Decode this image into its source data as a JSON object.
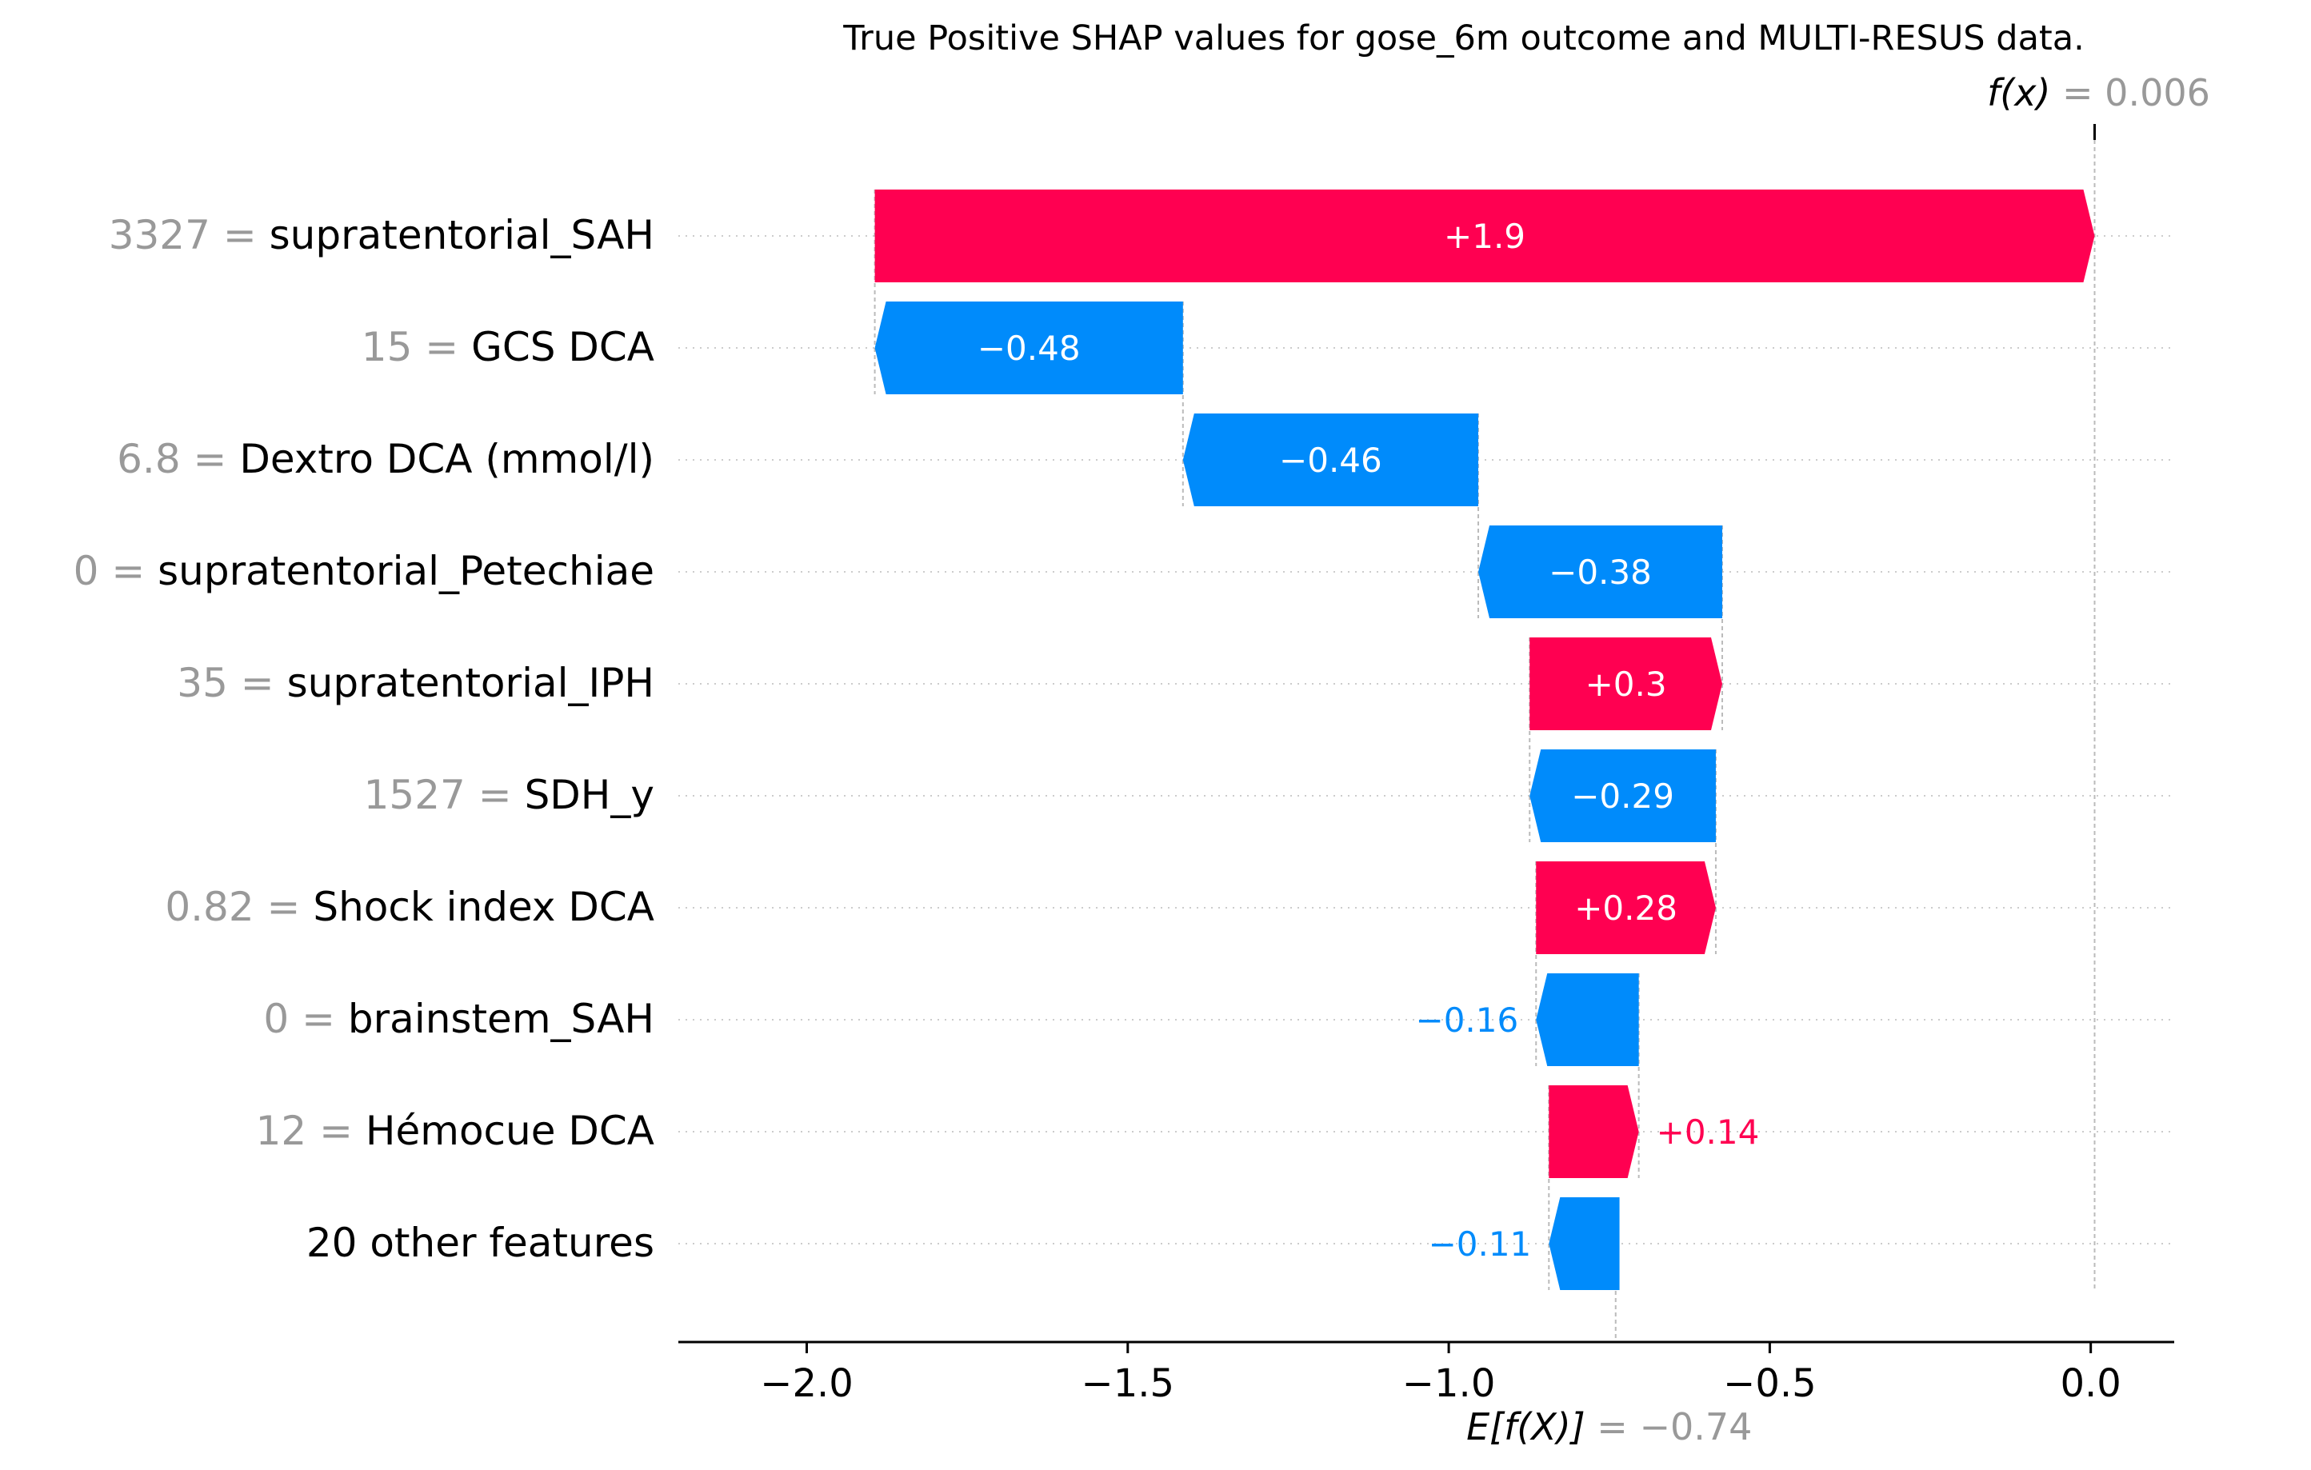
{
  "chart_data": {
    "type": "waterfall",
    "title": "True Positive SHAP values for gose_6m outcome and MULTI-RESUS data.",
    "base_value": -0.74,
    "output_value": 0.006,
    "base_label_prefix": "E[f(X)]",
    "base_label_suffix": "= −0.74",
    "output_label_prefix": "f(x)",
    "output_label_suffix": "= 0.006",
    "xlim": [
      -2.2,
      0.13
    ],
    "xticks": [
      -2.0,
      -1.5,
      -1.0,
      -0.5,
      0.0
    ],
    "xtick_labels": [
      "−2.0",
      "−1.5",
      "−1.0",
      "−0.5",
      "0.0"
    ],
    "grid": "horizontal dotted",
    "features": [
      {
        "value_text": "3327",
        "name": "supratentorial_SAH",
        "shap": 1.9,
        "label": "+1.9"
      },
      {
        "value_text": "15",
        "name": "GCS DCA",
        "shap": -0.48,
        "label": "−0.48"
      },
      {
        "value_text": "6.8",
        "name": "Dextro DCA (mmol/l)",
        "shap": -0.46,
        "label": "−0.46"
      },
      {
        "value_text": "0",
        "name": "supratentorial_Petechiae",
        "shap": -0.38,
        "label": "−0.38"
      },
      {
        "value_text": "35",
        "name": "supratentorial_IPH",
        "shap": 0.3,
        "label": "+0.3"
      },
      {
        "value_text": "1527",
        "name": "SDH_y",
        "shap": -0.29,
        "label": "−0.29"
      },
      {
        "value_text": "0.82",
        "name": "Shock index DCA",
        "shap": 0.28,
        "label": "+0.28"
      },
      {
        "value_text": "0",
        "name": "brainstem_SAH",
        "shap": -0.16,
        "label": "−0.16"
      },
      {
        "value_text": "12",
        "name": "Hémocue DCA",
        "shap": 0.14,
        "label": "+0.14"
      },
      {
        "value_text": "",
        "name": "20 other features",
        "shap": -0.11,
        "label": "−0.11"
      }
    ],
    "colors": {
      "positive": "#ff0051",
      "negative": "#008bfb",
      "muted": "#999999",
      "axis": "#000000"
    }
  }
}
